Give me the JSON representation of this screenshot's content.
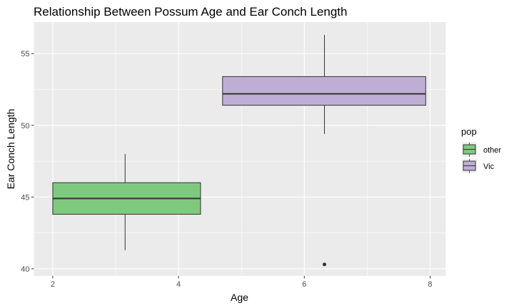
{
  "chart_data": {
    "type": "boxplot",
    "title": "Relationship Between Possum Age and Ear Conch Length",
    "xlabel": "Age",
    "ylabel": "Ear Conch Length",
    "xlim": [
      1.7,
      8.25
    ],
    "ylim": [
      39.5,
      57.2
    ],
    "x_ticks": [
      2,
      4,
      6,
      8
    ],
    "y_ticks": [
      40,
      45,
      50,
      55
    ],
    "grid": true,
    "legend": {
      "title": "pop",
      "position": "right"
    },
    "series": [
      {
        "name": "other",
        "color": "#7FC97F",
        "x_range": [
          2.0,
          4.35
        ],
        "center_x": 3.15,
        "whisker_low": 41.3,
        "q1": 43.8,
        "median": 44.9,
        "q3": 46.0,
        "whisker_high": 48.0,
        "outliers": []
      },
      {
        "name": "Vic",
        "color": "#BEAED4",
        "x_range": [
          4.7,
          7.93
        ],
        "center_x": 6.32,
        "whisker_low": 49.4,
        "q1": 51.4,
        "median": 52.2,
        "q3": 53.4,
        "whisker_high": 56.3,
        "outliers": [
          40.3
        ]
      }
    ]
  }
}
